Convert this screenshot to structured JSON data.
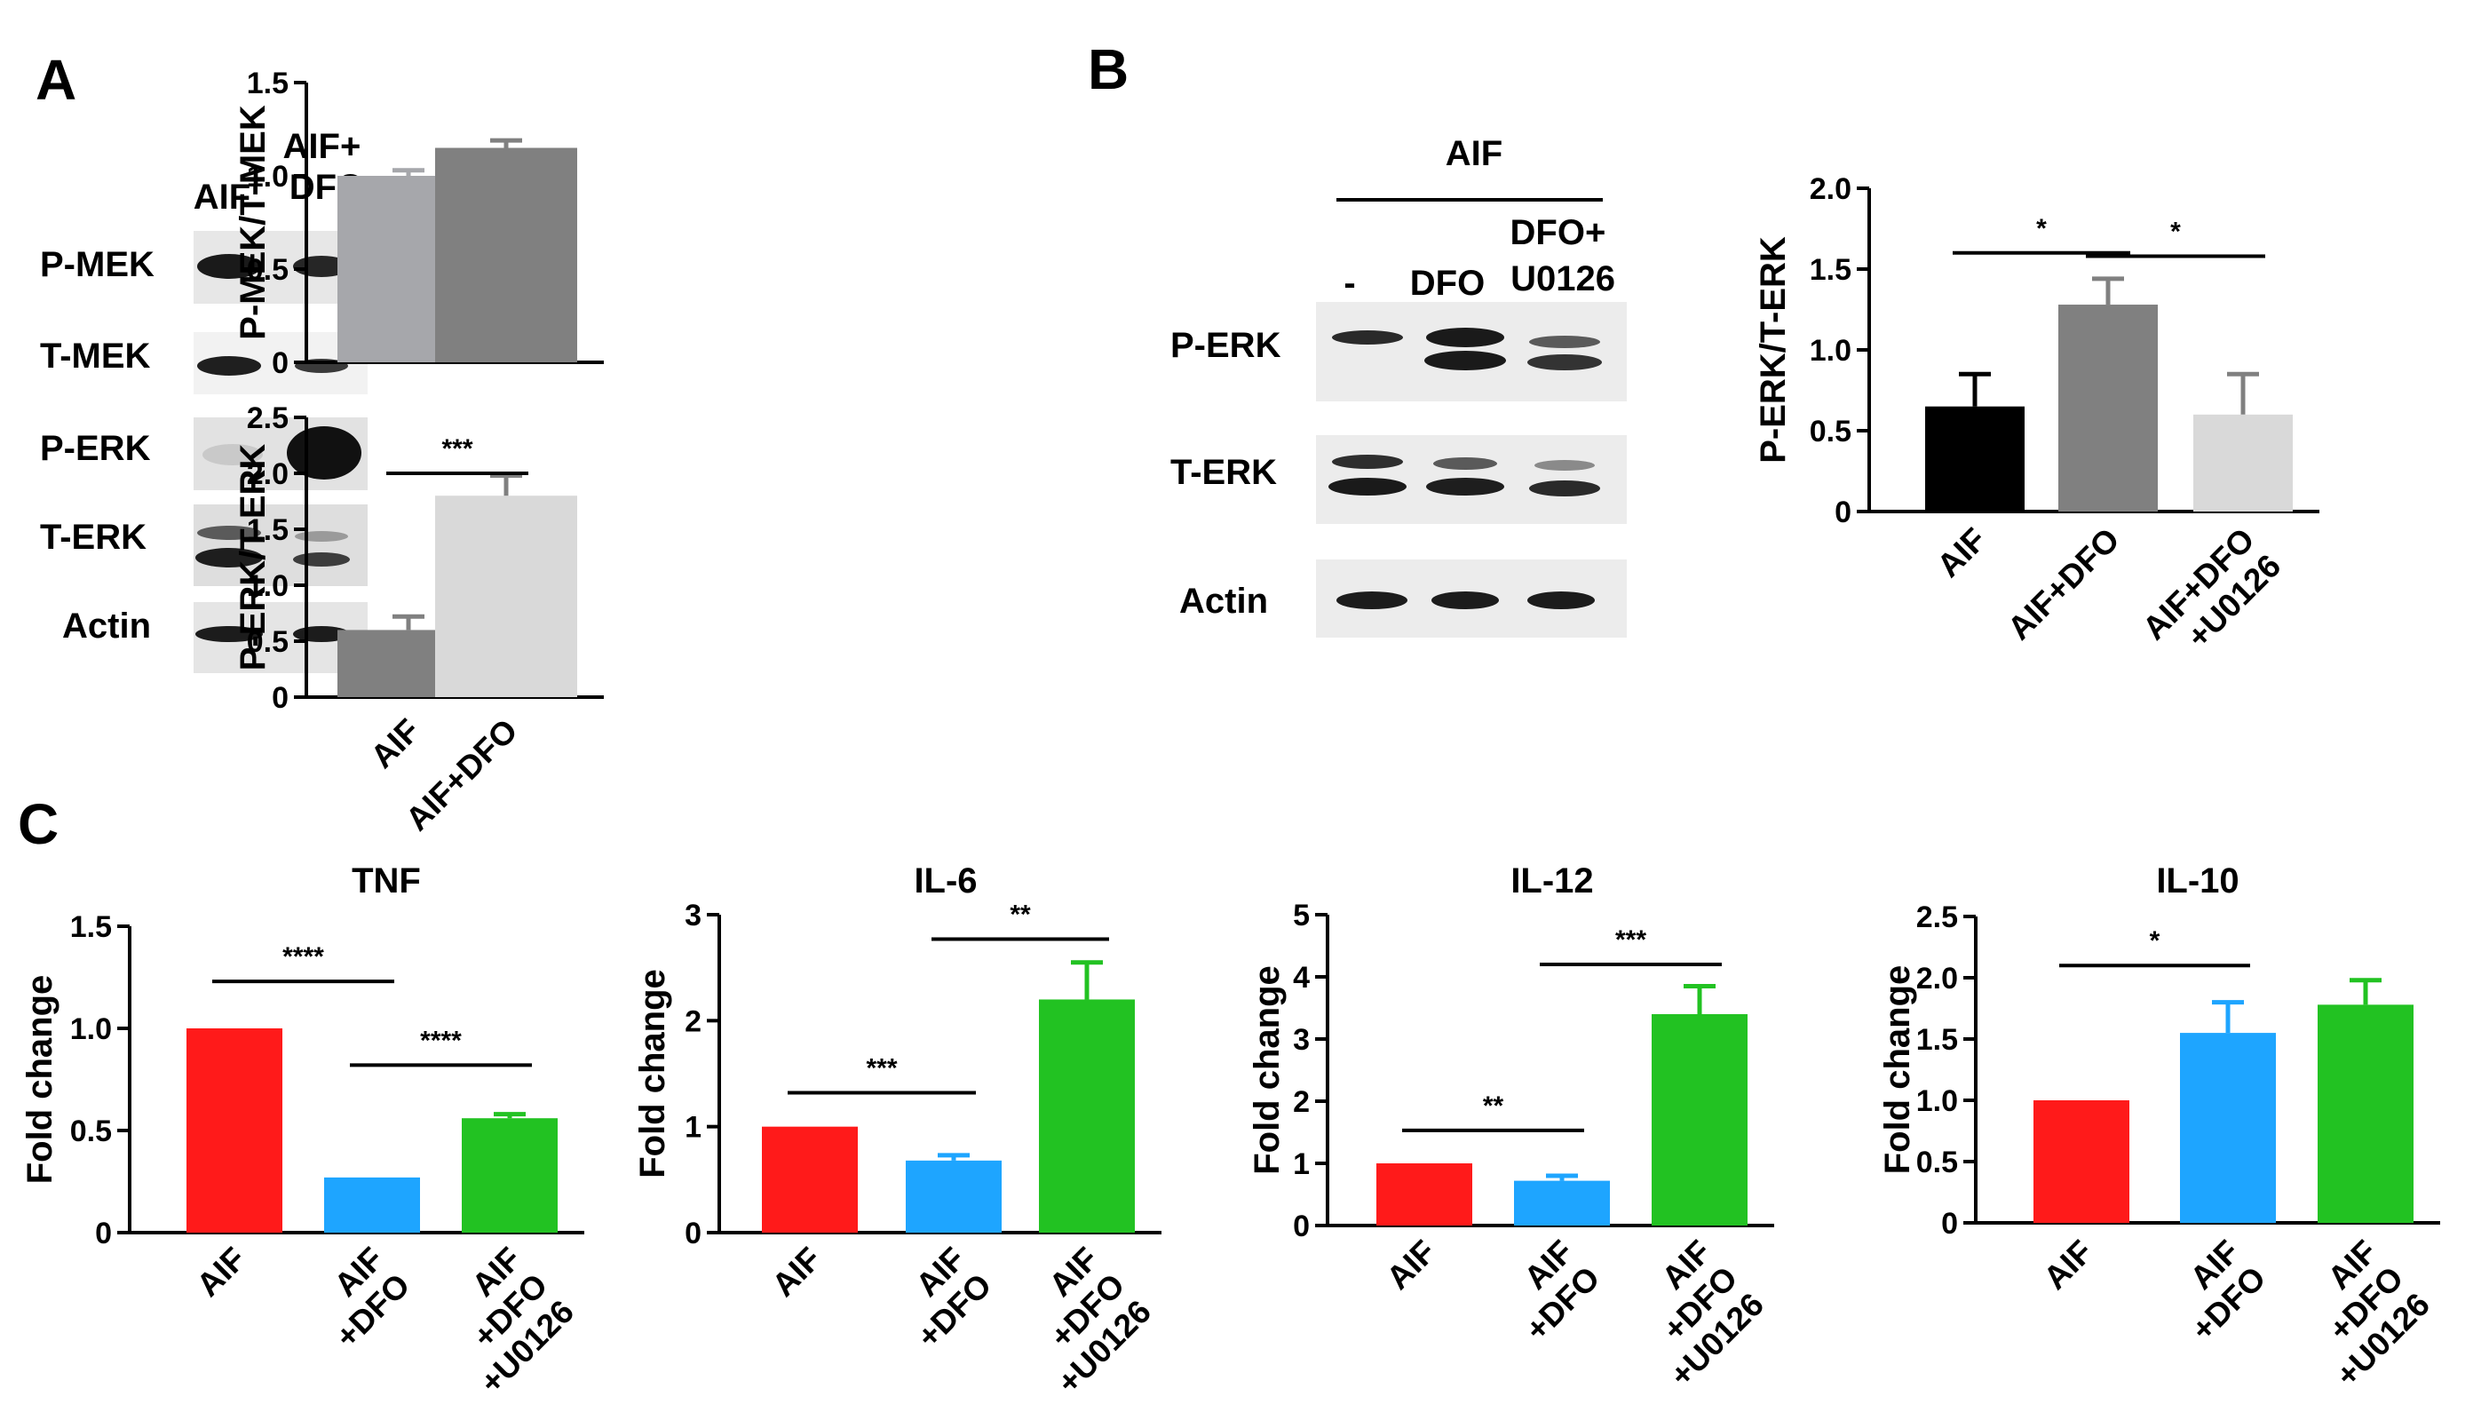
{
  "panels": {
    "a": "A",
    "b": "B",
    "c": "C"
  },
  "blot_a": {
    "lanes": [
      "AIF",
      "AIF+\nDFO"
    ],
    "rows": [
      "P-MEK",
      "T-MEK",
      "P-ERK",
      "T-ERK",
      "Actin"
    ]
  },
  "blot_b": {
    "group_label": "AIF",
    "lanes": [
      "-",
      "DFO",
      "DFO+\nU0126"
    ],
    "rows": [
      "P-ERK",
      "T-ERK",
      "Actin"
    ]
  },
  "colors": {
    "gray_light": "#a6a7ab",
    "gray_mid": "#808080",
    "gray_pale": "#d9d9d9",
    "black": "#000000",
    "red": "#ff1a1a",
    "blue": "#1ea5ff",
    "green": "#22c222"
  },
  "chart_data": [
    {
      "id": "a_top",
      "type": "bar",
      "categories": [
        "AIF",
        "AIF+DFO"
      ],
      "show_category_labels": false,
      "values": [
        1.0,
        1.15
      ],
      "errors": [
        0.03,
        0.04
      ],
      "colors": [
        "#a6a7ab",
        "#808080"
      ],
      "title": "",
      "xlabel": "",
      "ylabel": "P-MEK/T-MEK",
      "ylim": [
        0,
        1.5
      ],
      "yticks": [
        "0",
        "0.5",
        "1.0",
        "1.5"
      ],
      "significance": []
    },
    {
      "id": "a_bottom",
      "type": "bar",
      "categories": [
        "AIF",
        "AIF+DFO"
      ],
      "show_category_labels": true,
      "values": [
        0.6,
        1.8
      ],
      "errors": [
        0.12,
        0.18
      ],
      "colors": [
        "#808080",
        "#d9d9d9"
      ],
      "title": "",
      "xlabel": "",
      "ylabel": "P-ERK/T-ERK",
      "ylim": [
        0,
        2.5
      ],
      "yticks": [
        "0",
        "0.5",
        "1.0",
        "1.5",
        "2.0",
        "2.5"
      ],
      "significance": [
        {
          "from": 0,
          "to": 1,
          "label": "***",
          "y": 2.0
        }
      ]
    },
    {
      "id": "b",
      "type": "bar",
      "categories": [
        "AIF",
        "AIF+DFO",
        "AIF+DFO\n+U0126"
      ],
      "show_category_labels": true,
      "values": [
        0.65,
        1.28,
        0.6
      ],
      "errors": [
        0.2,
        0.16,
        0.25
      ],
      "colors": [
        "#000000",
        "#808080",
        "#d9d9d9"
      ],
      "title": "",
      "xlabel": "",
      "ylabel": "P-ERK/T-ERK",
      "ylim": [
        0,
        2.0
      ],
      "yticks": [
        "0",
        "0.5",
        "1.0",
        "1.5",
        "2.0"
      ],
      "significance": [
        {
          "from": 0,
          "to": 1,
          "label": "*",
          "y": 1.6
        },
        {
          "from": 1,
          "to": 2,
          "label": "*",
          "y": 1.58
        }
      ]
    },
    {
      "id": "c_tnf",
      "type": "bar",
      "categories": [
        "AIF",
        "AIF\n+DFO",
        "AIF\n+DFO\n+U0126"
      ],
      "show_category_labels": true,
      "values": [
        1.0,
        0.27,
        0.56
      ],
      "errors": [
        0.0,
        0.0,
        0.02
      ],
      "colors": [
        "#ff1a1a",
        "#1ea5ff",
        "#22c222"
      ],
      "title": "TNF",
      "xlabel": "",
      "ylabel": "Fold change",
      "ylim": [
        0,
        1.5
      ],
      "yticks": [
        "0",
        "0.5",
        "1.0",
        "1.5"
      ],
      "significance": [
        {
          "from": 0,
          "to": 1,
          "label": "****",
          "y": 1.23
        },
        {
          "from": 1,
          "to": 2,
          "label": "****",
          "y": 0.82
        }
      ]
    },
    {
      "id": "c_il6",
      "type": "bar",
      "categories": [
        "AIF",
        "AIF\n+DFO",
        "AIF\n+DFO\n+U0126"
      ],
      "show_category_labels": true,
      "values": [
        1.0,
        0.68,
        2.2
      ],
      "errors": [
        0.0,
        0.05,
        0.35
      ],
      "colors": [
        "#ff1a1a",
        "#1ea5ff",
        "#22c222"
      ],
      "title": "IL-6",
      "xlabel": "",
      "ylabel": "Fold change",
      "ylim": [
        0,
        3
      ],
      "yticks": [
        "0",
        "1",
        "2",
        "3"
      ],
      "significance": [
        {
          "from": 0,
          "to": 1,
          "label": "***",
          "y": 1.32
        },
        {
          "from": 1,
          "to": 2,
          "label": "**",
          "y": 2.77
        }
      ]
    },
    {
      "id": "c_il12",
      "type": "bar",
      "categories": [
        "AIF",
        "AIF\n+DFO",
        "AIF\n+DFO\n+U0126"
      ],
      "show_category_labels": true,
      "values": [
        1.0,
        0.72,
        3.4
      ],
      "errors": [
        0.0,
        0.08,
        0.45
      ],
      "colors": [
        "#ff1a1a",
        "#1ea5ff",
        "#22c222"
      ],
      "title": "IL-12",
      "xlabel": "",
      "ylabel": "Fold change",
      "ylim": [
        0,
        5
      ],
      "yticks": [
        "0",
        "1",
        "2",
        "3",
        "4",
        "5"
      ],
      "significance": [
        {
          "from": 0,
          "to": 1,
          "label": "**",
          "y": 1.53
        },
        {
          "from": 1,
          "to": 2,
          "label": "***",
          "y": 4.2
        }
      ]
    },
    {
      "id": "c_il10",
      "type": "bar",
      "categories": [
        "AIF",
        "AIF\n+DFO",
        "AIF\n+DFO\n+U0126"
      ],
      "show_category_labels": true,
      "values": [
        1.0,
        1.55,
        1.78
      ],
      "errors": [
        0.0,
        0.25,
        0.2
      ],
      "colors": [
        "#ff1a1a",
        "#1ea5ff",
        "#22c222"
      ],
      "title": "IL-10",
      "xlabel": "",
      "ylabel": "Fold change",
      "ylim": [
        0,
        2.5
      ],
      "yticks": [
        "0",
        "0.5",
        "1.0",
        "1.5",
        "2.0",
        "2.5"
      ],
      "significance": [
        {
          "from": 0,
          "to": 1,
          "label": "*",
          "y": 2.1
        }
      ]
    }
  ]
}
